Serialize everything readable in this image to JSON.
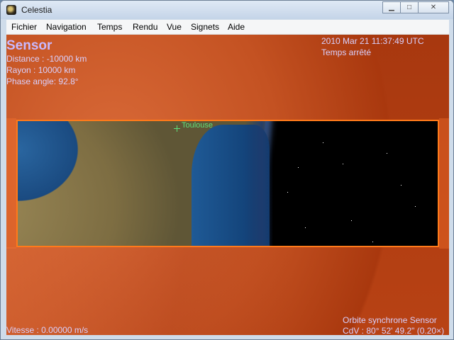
{
  "window": {
    "title": "Celestia",
    "minimize_icon": "minimize-icon",
    "maximize_icon": "maximize-icon",
    "close_icon": "close-icon"
  },
  "menu": {
    "items": [
      {
        "label": "Fichier"
      },
      {
        "label": "Navigation"
      },
      {
        "label": "Temps"
      },
      {
        "label": "Rendu"
      },
      {
        "label": "Vue"
      },
      {
        "label": "Signets"
      },
      {
        "label": "Aide"
      }
    ]
  },
  "hud": {
    "object_name": "Sensor",
    "distance": "Distance : -10000 km",
    "radius": "Rayon : 10000 km",
    "phase_angle": "Phase angle: 92.8°",
    "datetime": "2010 Mar 21 11:37:49 UTC",
    "time_state": "Temps arrêté",
    "speed": "Vitesse : 0.00000 m/s",
    "mode": "Orbite synchrone Sensor",
    "fov": "CdV : 80° 52' 49.2\" (0.20×)",
    "marker_label": "Toulouse"
  },
  "colors": {
    "frame_border": "#ff7a1a",
    "hud_text": "#d9d1ff",
    "marker": "#5fe07a"
  }
}
